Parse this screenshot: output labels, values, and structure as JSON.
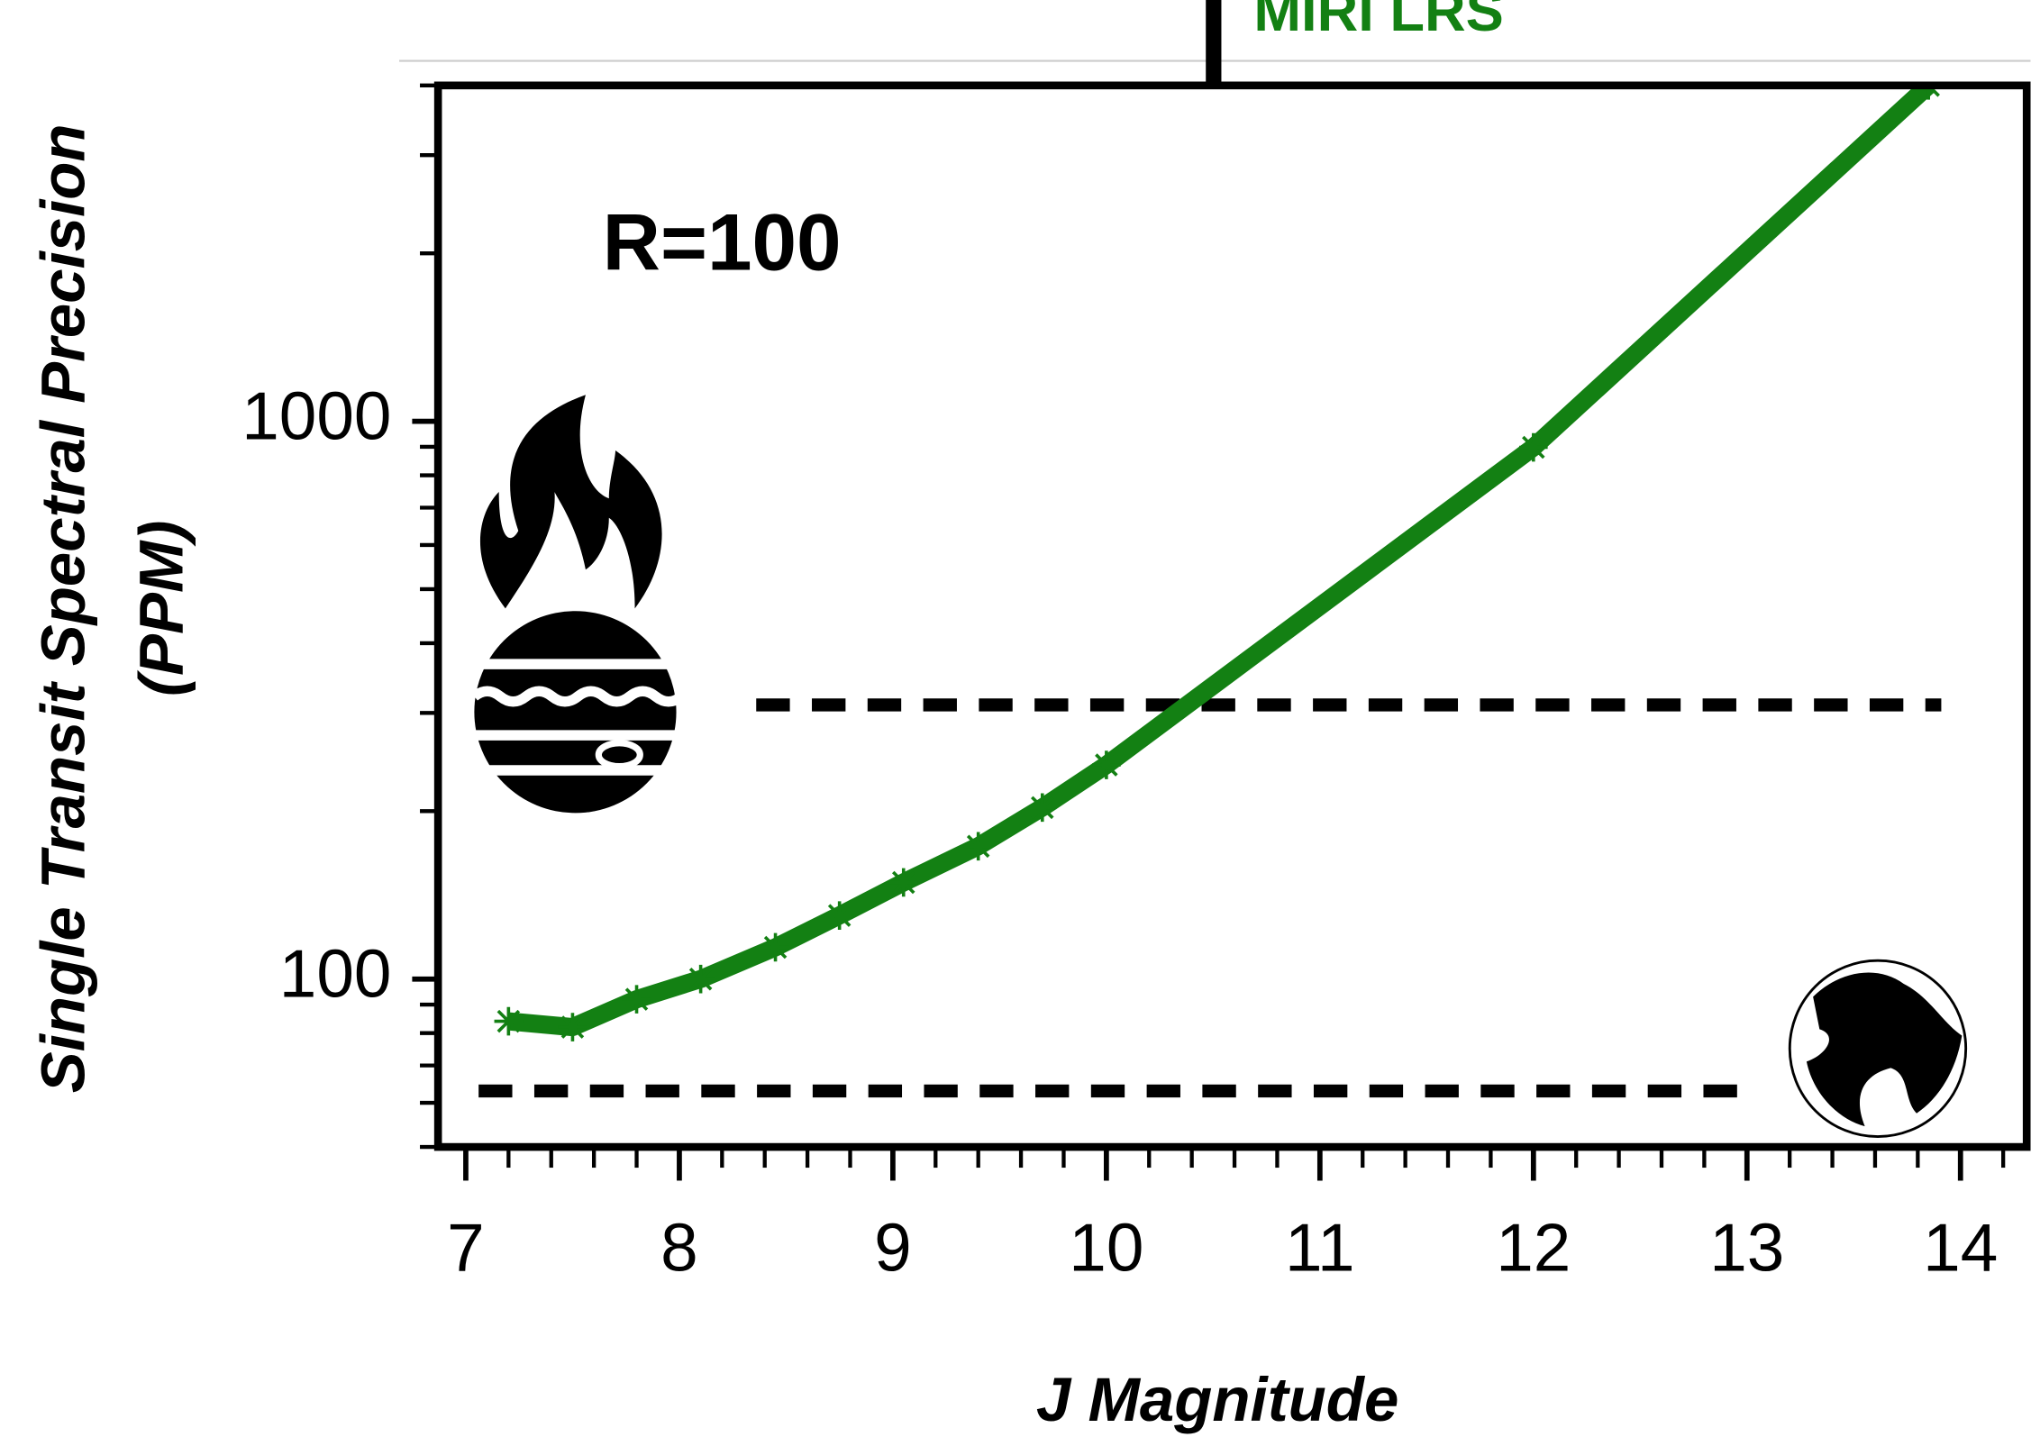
{
  "chart_data": {
    "type": "line",
    "instrument": "MIRI LRS",
    "annotation": "R=100",
    "xlabel": "J Magnitude",
    "ylabel": [
      "Single Transit Spectral Precision",
      "(PPM)"
    ],
    "x": [
      7.2,
      7.5,
      7.8,
      8.1,
      8.45,
      8.75,
      9.05,
      9.4,
      9.7,
      10.0,
      12.0,
      13.85
    ],
    "series": [
      {
        "color": "#138013",
        "values": [
          84,
          82,
          92,
          100,
          114,
          130,
          149,
          173,
          203,
          242,
          898,
          4000
        ]
      }
    ],
    "reference_lines": [
      {
        "value": 310,
        "x": [
          8.36,
          13.91
        ]
      },
      {
        "value": 63,
        "x": [
          7.06,
          13.05
        ]
      }
    ],
    "xlim": [
      6.87,
      14.31
    ],
    "ylim": [
      50,
      4000
    ],
    "ylog": true,
    "xticks": [
      7,
      8,
      9,
      10,
      11,
      12,
      13,
      14
    ],
    "xminorticks": [
      7.2,
      7.4,
      7.6,
      7.8,
      8.2,
      8.4,
      8.6,
      8.8,
      9.2,
      9.4,
      9.6,
      9.8,
      10.2,
      10.4,
      10.6,
      10.8,
      11.2,
      11.4,
      11.6,
      11.8,
      12.2,
      12.4,
      12.6,
      12.8,
      13.2,
      13.4,
      13.6,
      13.8,
      14.2
    ],
    "yticks": [
      100,
      1000
    ],
    "yminorticks": [
      50,
      60,
      70,
      80,
      90,
      200,
      300,
      400,
      500,
      600,
      700,
      800,
      900,
      2000,
      3000,
      4000
    ]
  }
}
